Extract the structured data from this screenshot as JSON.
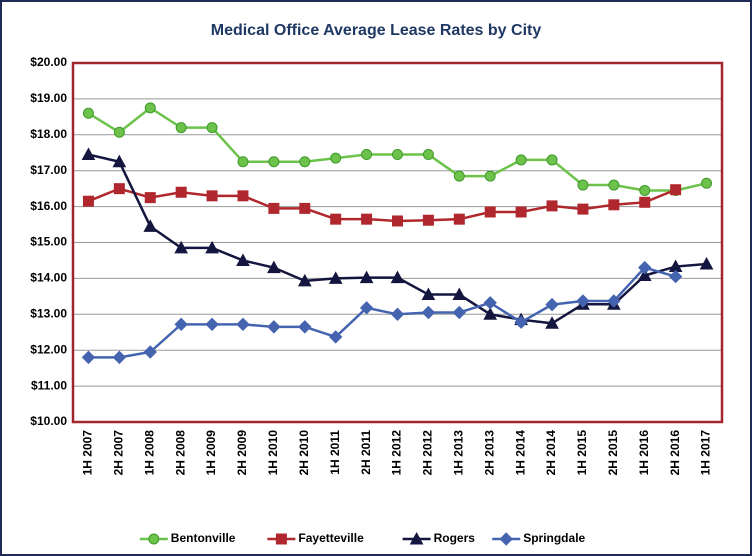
{
  "chart_data": {
    "type": "line",
    "title": "Medical Office Average Lease Rates by City",
    "categories": [
      "1H 2007",
      "2H 2007",
      "1H 2008",
      "2H 2008",
      "1H 2009",
      "2H 2009",
      "1H 2010",
      "2H 2010",
      "1H 2011",
      "2H 2011",
      "1H 2012",
      "2H 2012",
      "1H 2013",
      "2H 2013",
      "1H 2014",
      "2H 2014",
      "1H 2015",
      "2H 2015",
      "1H 2016",
      "2H 2016",
      "1H 2017"
    ],
    "series": [
      {
        "name": "Bentonville",
        "color": "#6cc24a",
        "marker": "circle",
        "values": [
          18.6,
          18.07,
          18.75,
          18.2,
          18.2,
          17.25,
          17.25,
          17.25,
          17.35,
          17.45,
          17.45,
          17.45,
          16.85,
          16.85,
          17.3,
          17.3,
          16.6,
          16.6,
          16.45,
          16.45,
          16.65
        ]
      },
      {
        "name": "Fayetteville",
        "color": "#b0282e",
        "marker": "square",
        "values": [
          16.15,
          16.5,
          16.25,
          16.4,
          16.3,
          16.3,
          15.95,
          15.95,
          15.65,
          15.65,
          15.6,
          15.62,
          15.65,
          15.85,
          15.85,
          16.02,
          15.93,
          16.05,
          16.12,
          16.47,
          null
        ]
      },
      {
        "name": "Rogers",
        "color": "#14163f",
        "marker": "triangle",
        "values": [
          17.45,
          17.25,
          15.45,
          14.85,
          14.85,
          14.5,
          14.3,
          13.93,
          14.0,
          14.02,
          14.02,
          13.55,
          13.55,
          13.0,
          12.85,
          12.75,
          13.28,
          13.28,
          14.08,
          14.33,
          14.4
        ]
      },
      {
        "name": "Springdale",
        "color": "#4564b0",
        "marker": "diamond",
        "values": [
          11.8,
          11.8,
          11.95,
          12.72,
          12.72,
          12.72,
          12.65,
          12.65,
          12.37,
          13.18,
          13.0,
          13.05,
          13.05,
          13.32,
          12.78,
          13.27,
          13.37,
          13.37,
          14.3,
          14.05,
          null
        ]
      }
    ],
    "ylim": [
      10,
      20
    ],
    "yticks": [
      {
        "value": 10,
        "label": "$10.00"
      },
      {
        "value": 11,
        "label": "$11.00"
      },
      {
        "value": 12,
        "label": "$12.00"
      },
      {
        "value": 13,
        "label": "$13.00"
      },
      {
        "value": 14,
        "label": "$14.00"
      },
      {
        "value": 15,
        "label": "$15.00"
      },
      {
        "value": 16,
        "label": "$16.00"
      },
      {
        "value": 17,
        "label": "$17.00"
      },
      {
        "value": 18,
        "label": "$18.00"
      },
      {
        "value": 19,
        "label": "$19.00"
      },
      {
        "value": 20,
        "label": "$20.00"
      }
    ],
    "grid": true,
    "legend": "bottom"
  }
}
